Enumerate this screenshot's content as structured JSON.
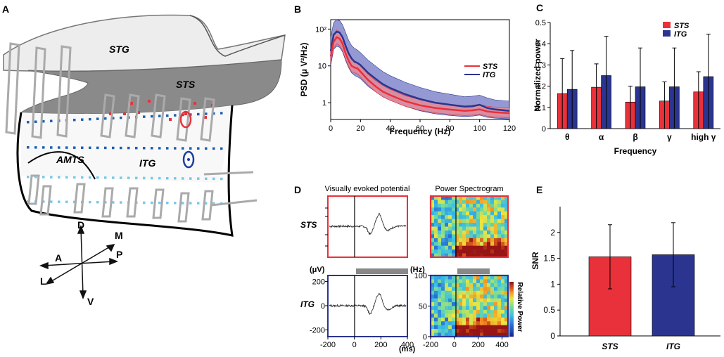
{
  "panels": {
    "a": "A",
    "b": "B",
    "c": "C",
    "d": "D",
    "e": "E"
  },
  "anatomy": {
    "labels": [
      "STG",
      "STS",
      "AMTS",
      "ITG"
    ],
    "directions": [
      "D",
      "M",
      "A",
      "P",
      "L",
      "V"
    ]
  },
  "colors": {
    "sts": "#e8313a",
    "itg": "#2b3590",
    "sts_band": "#f08a90",
    "itg_band": "#7b80c8"
  },
  "chart_data": [
    {
      "id": "B",
      "type": "line",
      "title": "",
      "xlabel": "Frequency (Hz)",
      "ylabel": "PSD (μ V²/Hz)",
      "xlim": [
        0,
        120
      ],
      "ylim": [
        0.35,
        180
      ],
      "yscale": "log",
      "x_ticks": [
        0,
        20,
        40,
        60,
        80,
        100,
        120
      ],
      "y_ticks": [
        {
          "value": 1,
          "label": "1"
        },
        {
          "value": 10,
          "label": "10"
        },
        {
          "value": 100,
          "label": "10²"
        }
      ],
      "legend": [
        "STS",
        "ITG"
      ],
      "x": [
        0,
        2,
        4,
        6,
        8,
        10,
        12,
        14,
        16,
        18,
        20,
        25,
        30,
        35,
        40,
        50,
        60,
        70,
        80,
        90,
        95,
        100,
        105,
        110,
        120
      ],
      "series": [
        {
          "name": "STS",
          "values": [
            18,
            45,
            60,
            55,
            40,
            22,
            14,
            10,
            9,
            8.5,
            7,
            4.2,
            2.8,
            2.0,
            1.6,
            1.1,
            0.85,
            0.72,
            0.65,
            0.6,
            0.62,
            0.66,
            0.58,
            0.55,
            0.52
          ],
          "lower": [
            12,
            30,
            40,
            36,
            26,
            15,
            10,
            7,
            6.5,
            6,
            5,
            3.0,
            2.0,
            1.45,
            1.15,
            0.8,
            0.62,
            0.53,
            0.48,
            0.45,
            0.46,
            0.49,
            0.43,
            0.41,
            0.39
          ],
          "upper": [
            28,
            70,
            95,
            85,
            62,
            34,
            21,
            15,
            13.5,
            12.5,
            10,
            6.0,
            4.0,
            2.9,
            2.3,
            1.55,
            1.2,
            1.0,
            0.9,
            0.82,
            0.85,
            0.9,
            0.8,
            0.76,
            0.72
          ]
        },
        {
          "name": "ITG",
          "values": [
            25,
            70,
            85,
            80,
            60,
            35,
            22,
            16,
            13,
            12,
            10.5,
            6.5,
            4.5,
            3.2,
            2.5,
            1.7,
            1.25,
            1.0,
            0.88,
            0.78,
            0.8,
            0.88,
            0.72,
            0.66,
            0.6
          ],
          "lower": [
            10,
            28,
            34,
            32,
            24,
            14,
            9,
            6.5,
            5.5,
            5,
            4.5,
            2.8,
            2.0,
            1.45,
            1.15,
            0.8,
            0.6,
            0.5,
            0.45,
            0.42,
            0.43,
            0.46,
            0.4,
            0.38,
            0.36
          ],
          "upper": [
            60,
            150,
            180,
            170,
            130,
            80,
            50,
            36,
            30,
            27,
            23,
            14.5,
            10,
            7.0,
            5.4,
            3.6,
            2.6,
            2.0,
            1.7,
            1.45,
            1.5,
            1.6,
            1.35,
            1.2,
            1.1
          ]
        }
      ]
    },
    {
      "id": "C",
      "type": "bar",
      "title": "",
      "xlabel": "Frequency",
      "ylabel": "Normalized power",
      "ylim": [
        0,
        0.5
      ],
      "y_ticks": [
        0,
        0.1,
        0.2,
        0.3,
        0.4,
        0.5
      ],
      "legend": [
        "STS",
        "ITG"
      ],
      "categories": [
        "θ",
        "α",
        "β",
        "γ",
        "high γ"
      ],
      "series": [
        {
          "name": "STS",
          "values": [
            0.165,
            0.195,
            0.125,
            0.13,
            0.173
          ],
          "error": [
            0.165,
            0.11,
            0.075,
            0.09,
            0.095
          ]
        },
        {
          "name": "ITG",
          "values": [
            0.185,
            0.25,
            0.197,
            0.197,
            0.245
          ],
          "error": [
            0.183,
            0.185,
            0.183,
            0.183,
            0.2
          ]
        }
      ]
    },
    {
      "id": "D-vep",
      "type": "line",
      "title": "Visually evoked potential",
      "rows": [
        "STS",
        "ITG"
      ],
      "xlabel": "(ms)",
      "ylabel": "(μV)",
      "xlim": [
        -200,
        400
      ],
      "ylim": [
        -250,
        250
      ],
      "x_ticks": [
        -200,
        0,
        200,
        400
      ],
      "y_ticks": [
        200,
        0,
        -200
      ],
      "stimulus_onset_ms": 0,
      "stimulus_bar_ms": [
        0,
        300
      ]
    },
    {
      "id": "D-spec",
      "type": "heatmap",
      "title": "Power Spectrogram",
      "rows": [
        "STS",
        "ITG"
      ],
      "xlabel": "",
      "ylabel": "(Hz)",
      "xlim": [
        -200,
        450
      ],
      "ylim": [
        0,
        100
      ],
      "x_ticks": [
        -200,
        0,
        200,
        400
      ],
      "y_ticks": [
        100,
        50,
        0
      ],
      "colorbar_label": "Relative Power",
      "stimulus_bar_ms": [
        0,
        300
      ]
    },
    {
      "id": "E",
      "type": "bar",
      "title": "",
      "xlabel": "",
      "ylabel": "SNR",
      "ylim": [
        0,
        2.5
      ],
      "y_ticks": [
        0,
        0.5,
        1,
        1.5,
        2
      ],
      "categories": [
        "STS",
        "ITG"
      ],
      "values": [
        1.53,
        1.57
      ],
      "error": [
        0.62,
        0.62
      ]
    }
  ]
}
